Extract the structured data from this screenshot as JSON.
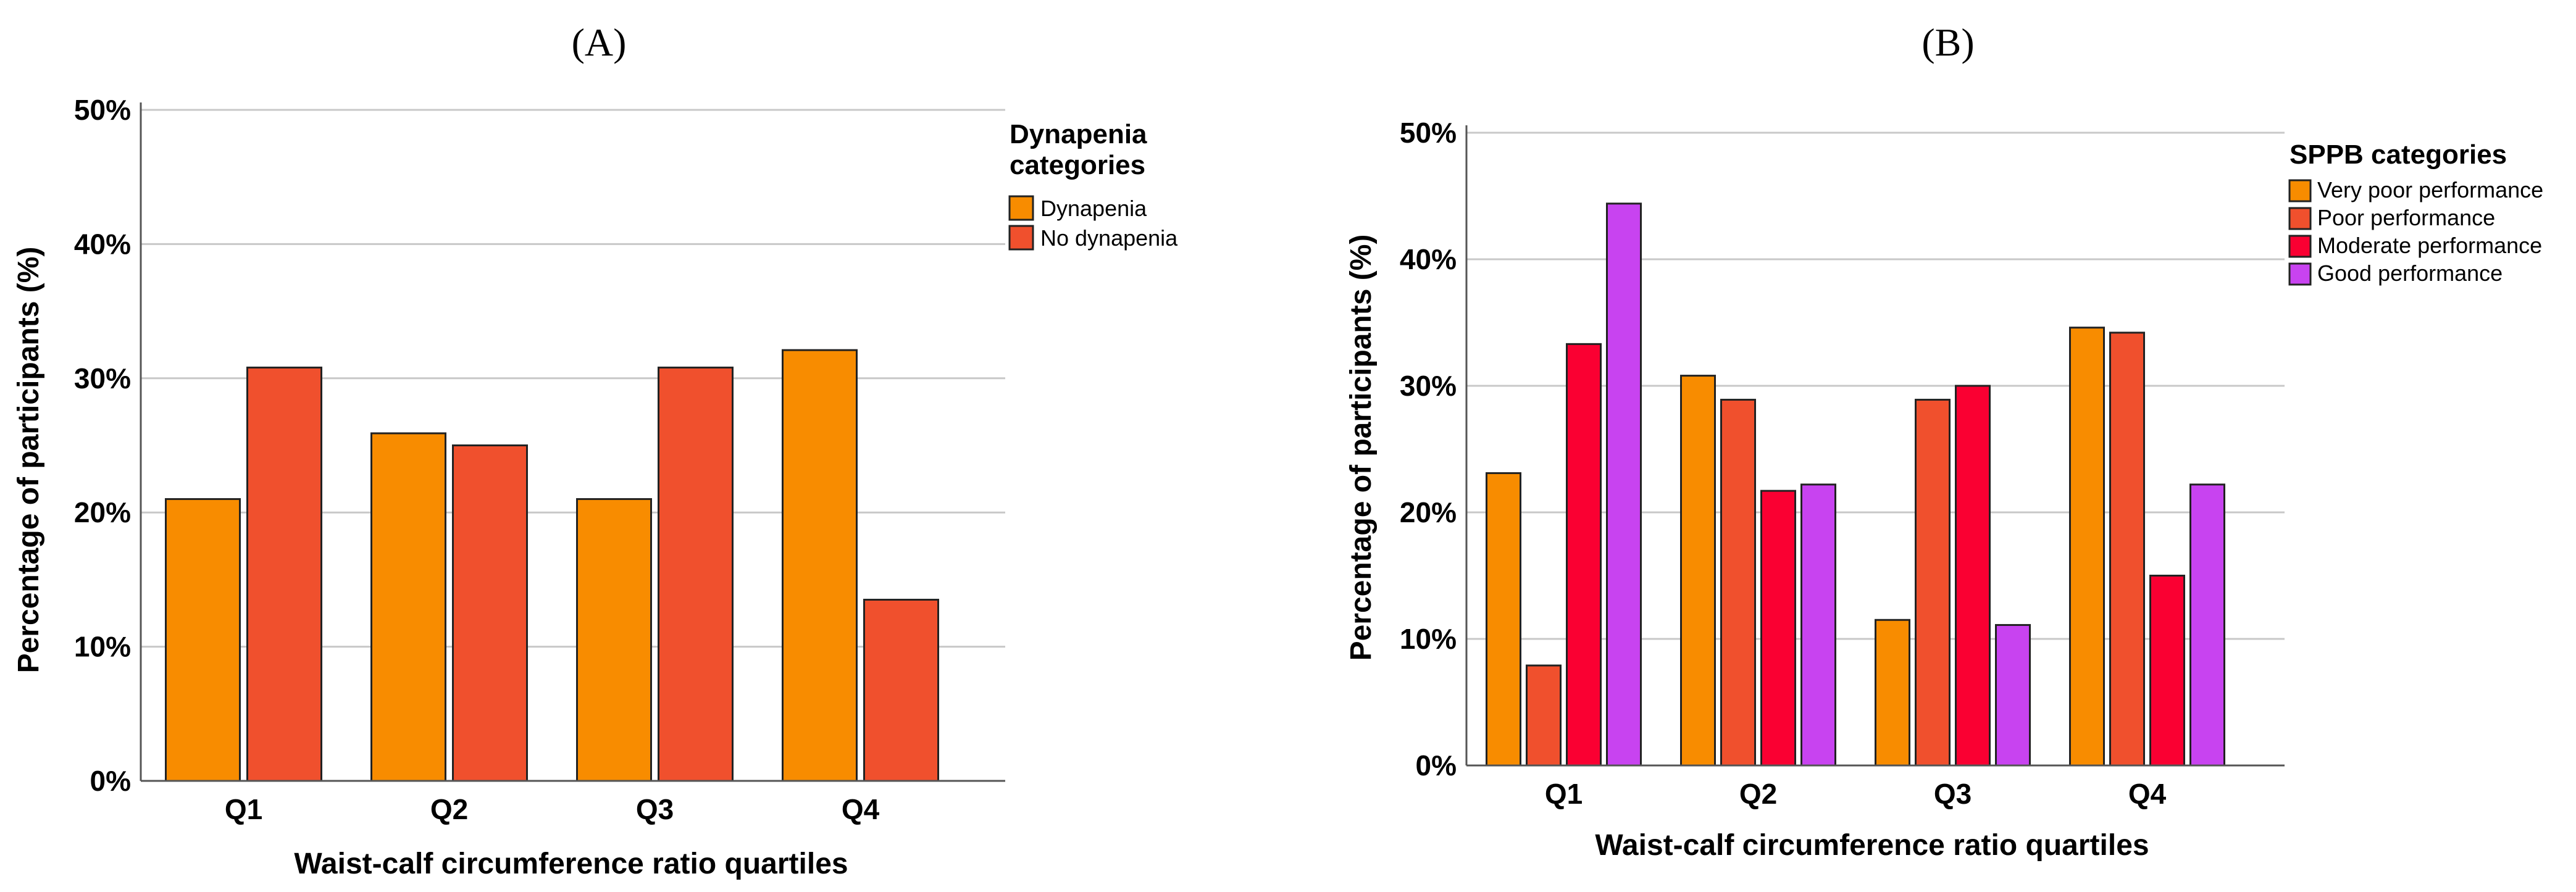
{
  "chart_data": [
    {
      "type": "bar",
      "panel_label": "(A)",
      "title": "",
      "xlabel": "Waist-calf circumference ratio quartiles",
      "ylabel": "Percentage of participants (%)",
      "ylim": [
        0,
        50
      ],
      "yticks": [
        "0%",
        "10%",
        "20%",
        "30%",
        "40%",
        "50%"
      ],
      "categories": [
        "Q1",
        "Q2",
        "Q3",
        "Q4"
      ],
      "grid": "horizontal",
      "legend": {
        "title_lines": [
          "Dynapenia",
          "categories"
        ],
        "placement": "right"
      },
      "series": [
        {
          "name": "Dynapenia",
          "color": "#F88C00",
          "values": [
            21.0,
            25.9,
            21.0,
            32.1
          ]
        },
        {
          "name": "No dynapenia",
          "color": "#F0502D",
          "values": [
            30.8,
            25.0,
            30.8,
            13.5
          ]
        }
      ]
    },
    {
      "type": "bar",
      "panel_label": "(B)",
      "title": "",
      "xlabel": "Waist-calf circumference ratio quartiles",
      "ylabel": "Percentage of participants (%)",
      "ylim": [
        0,
        50
      ],
      "yticks": [
        "0%",
        "10%",
        "20%",
        "30%",
        "40%",
        "50%"
      ],
      "categories": [
        "Q1",
        "Q2",
        "Q3",
        "Q4"
      ],
      "grid": "horizontal",
      "legend": {
        "title_lines": [
          "SPPB categories"
        ],
        "placement": "right"
      },
      "series": [
        {
          "name": "Very poor performance",
          "color": "#F88C00",
          "values": [
            23.1,
            30.8,
            11.5,
            34.6
          ]
        },
        {
          "name": "Poor performance",
          "color": "#F0502D",
          "values": [
            7.9,
            28.9,
            28.9,
            34.2
          ]
        },
        {
          "name": "Moderate performance",
          "color": "#FA0032",
          "values": [
            33.3,
            21.7,
            30.0,
            15.0
          ]
        },
        {
          "name": "Good performance",
          "color": "#C843F0",
          "values": [
            44.4,
            22.2,
            11.1,
            22.2
          ]
        }
      ]
    }
  ]
}
